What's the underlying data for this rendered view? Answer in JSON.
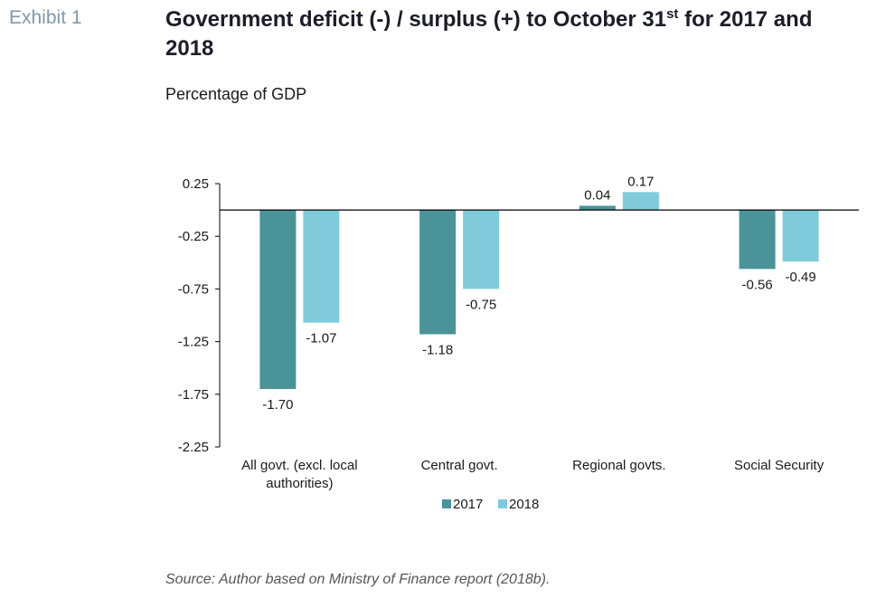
{
  "exhibit_label": "Exhibit 1",
  "title_main": "Government deficit (-) / surplus (+) to October 31",
  "title_sup": "st",
  "title_rest": " for 2017 and 2018",
  "subtitle": "Percentage of GDP",
  "source": "Source: Author based on Ministry of Finance report (2018b).",
  "colors": {
    "2017": "#4a9398",
    "2018": "#7fcbdc",
    "axis": "#000000"
  },
  "chart_data": {
    "type": "bar",
    "categories": [
      [
        "All govt. (excl. local",
        "authorities)"
      ],
      [
        "Central govt."
      ],
      [
        "Regional govts."
      ],
      [
        "Social Security"
      ]
    ],
    "series": [
      {
        "name": "2017",
        "values": [
          -1.7,
          -1.18,
          0.04,
          -0.56
        ],
        "labels": [
          "-1.70",
          "-1.18",
          "0.04",
          "-0.56"
        ]
      },
      {
        "name": "2018",
        "values": [
          -1.07,
          -0.75,
          0.17,
          -0.49
        ],
        "labels": [
          "-1.07",
          "-0.75",
          "0.17",
          "-0.49"
        ]
      }
    ],
    "yticks": [
      "0.25",
      "-0.25",
      "-0.75",
      "-1.25",
      "-1.75",
      "-2.25"
    ],
    "ylim": [
      -2.25,
      0.25
    ],
    "legend_position": "bottom"
  }
}
